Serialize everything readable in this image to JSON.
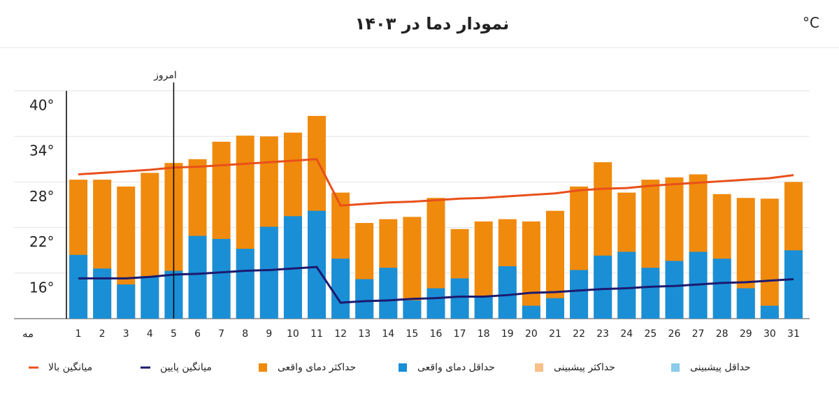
{
  "chart_data": {
    "type": "bar",
    "title": "نمودار دما در ۱۴۰۳",
    "unit": "°C",
    "x_label": "مه",
    "today": {
      "text": "امروز",
      "category": "5"
    },
    "categories": [
      "1",
      "2",
      "3",
      "4",
      "5",
      "6",
      "7",
      "8",
      "9",
      "10",
      "11",
      "12",
      "13",
      "14",
      "15",
      "16",
      "17",
      "18",
      "19",
      "20",
      "21",
      "22",
      "23",
      "24",
      "25",
      "26",
      "27",
      "28",
      "29",
      "30",
      "31"
    ],
    "ylim": [
      10,
      40
    ],
    "yticks": [
      {
        "value": 16,
        "label": "16°"
      },
      {
        "value": 22,
        "label": "22°"
      },
      {
        "value": 28,
        "label": "28°"
      },
      {
        "value": 34,
        "label": "34°"
      },
      {
        "value": 40,
        "label": "40°"
      }
    ],
    "grid": true,
    "series": [
      {
        "name": "حداکثر دمای واقعی",
        "kind": "bar",
        "color": "#f08a0c",
        "values": [
          28.3,
          28.3,
          27.4,
          29.2,
          30.5,
          31.0,
          33.3,
          34.1,
          34.0,
          34.5,
          36.7,
          26.6,
          22.6,
          23.1,
          23.4,
          25.9,
          21.8,
          22.8,
          23.1,
          22.8,
          24.2,
          27.4,
          30.6,
          26.6,
          28.3,
          28.6,
          29.0,
          26.4,
          25.9,
          25.8,
          28.0
        ]
      },
      {
        "name": "حداقل دمای واقعی",
        "kind": "bar",
        "color": "#1a8fd6",
        "values": [
          18.4,
          16.6,
          14.5,
          15.6,
          16.3,
          20.9,
          20.5,
          19.2,
          22.1,
          23.5,
          24.2,
          17.9,
          15.2,
          16.7,
          12.4,
          14.0,
          15.3,
          12.9,
          16.9,
          11.7,
          12.7,
          16.4,
          18.3,
          18.8,
          16.7,
          17.6,
          18.8,
          17.9,
          14.0,
          11.7,
          19.0
        ]
      },
      {
        "name": "میانگین بالا",
        "kind": "line",
        "color": "#e8501a",
        "values": [
          29.0,
          29.2,
          29.4,
          29.6,
          29.9,
          30.0,
          30.2,
          30.4,
          30.6,
          30.8,
          31.0,
          24.9,
          25.1,
          25.3,
          25.4,
          25.6,
          25.8,
          25.9,
          26.1,
          26.3,
          26.5,
          26.9,
          27.1,
          27.2,
          27.5,
          27.7,
          27.9,
          28.1,
          28.3,
          28.5,
          28.9
        ]
      },
      {
        "name": "میانگین پایین",
        "kind": "line",
        "color": "#1c1a6e",
        "values": [
          15.3,
          15.3,
          15.3,
          15.5,
          15.8,
          15.9,
          16.1,
          16.3,
          16.4,
          16.6,
          16.8,
          12.1,
          12.3,
          12.4,
          12.6,
          12.7,
          12.9,
          12.9,
          13.1,
          13.4,
          13.5,
          13.7,
          13.9,
          14.0,
          14.2,
          14.3,
          14.5,
          14.7,
          14.8,
          15.0,
          15.2
        ]
      },
      {
        "name": "حداکثر پیشبینی",
        "kind": "bar",
        "color": "#f9c08a",
        "values": [
          null,
          null,
          null,
          null,
          null,
          null,
          null,
          null,
          null,
          null,
          null,
          null,
          null,
          null,
          null,
          null,
          null,
          null,
          null,
          null,
          null,
          null,
          null,
          null,
          null,
          null,
          null,
          null,
          null,
          null,
          null
        ]
      },
      {
        "name": "حداقل پیشبینی",
        "kind": "bar",
        "color": "#8ccbea",
        "values": [
          null,
          null,
          null,
          null,
          null,
          null,
          null,
          null,
          null,
          null,
          null,
          null,
          null,
          null,
          null,
          null,
          null,
          null,
          null,
          null,
          null,
          null,
          null,
          null,
          null,
          null,
          null,
          null,
          null,
          null,
          null
        ]
      }
    ]
  }
}
